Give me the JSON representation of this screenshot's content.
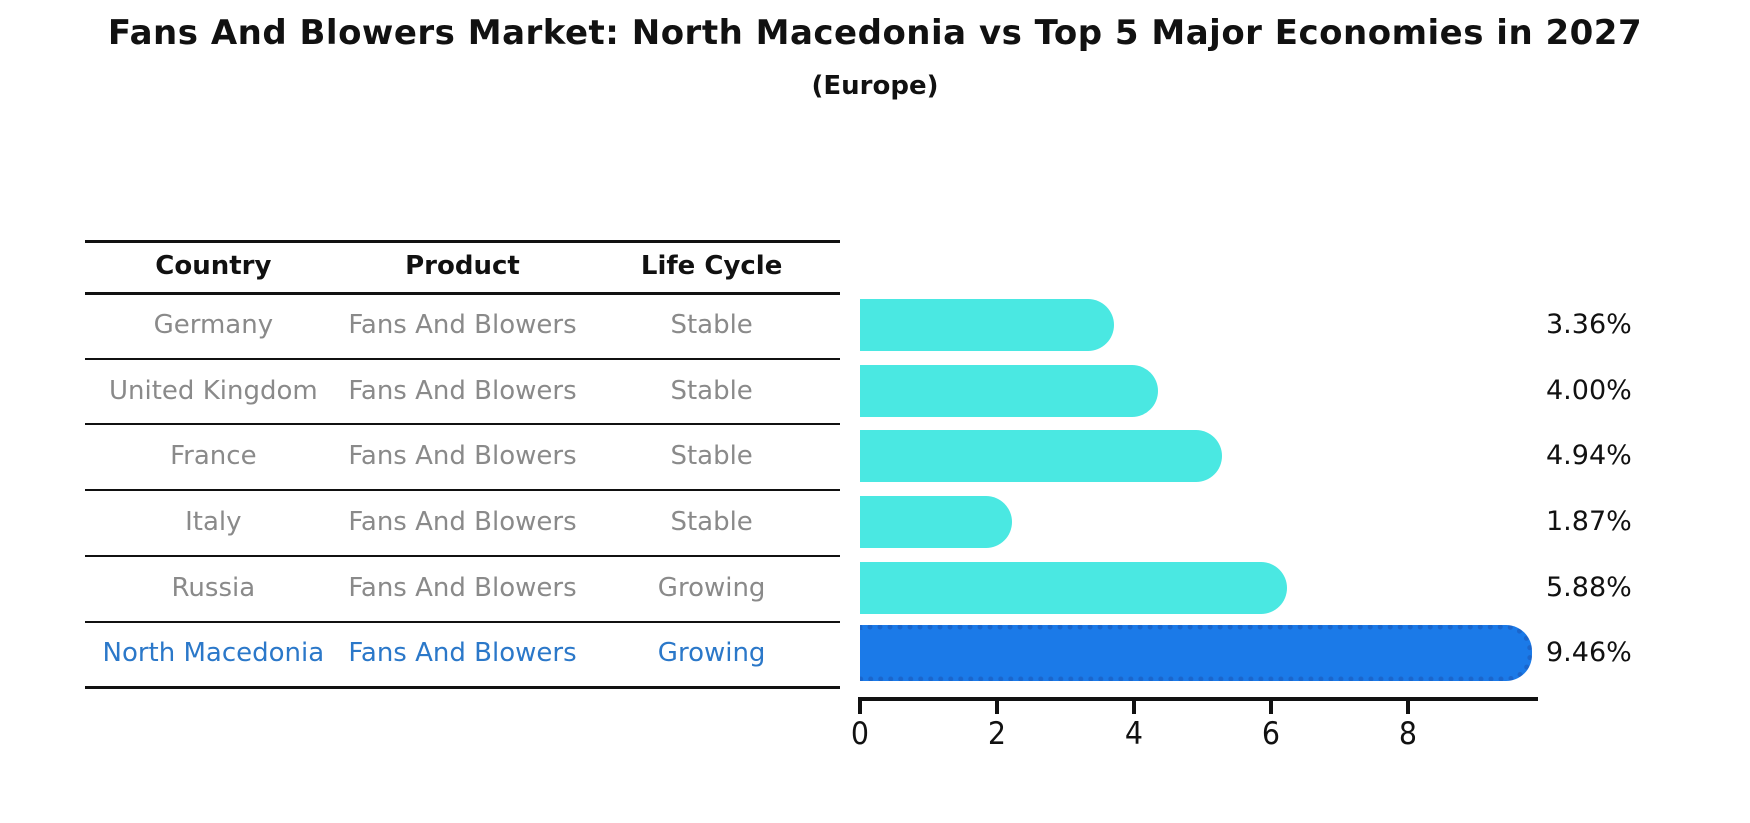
{
  "title": "Fans And Blowers Market: North Macedonia vs Top 5 Major Economies in 2027",
  "subtitle": "(Europe)",
  "table": {
    "headers": [
      "Country",
      "Product",
      "Life Cycle"
    ],
    "rows": [
      {
        "country": "Germany",
        "product": "Fans And Blowers",
        "life_cycle": "Stable",
        "value": 3.36,
        "value_label": "3.36%",
        "highlight": false
      },
      {
        "country": "United Kingdom",
        "product": "Fans And Blowers",
        "life_cycle": "Stable",
        "value": 4.0,
        "value_label": "4.00%",
        "highlight": false
      },
      {
        "country": "France",
        "product": "Fans And Blowers",
        "life_cycle": "Stable",
        "value": 4.94,
        "value_label": "4.94%",
        "highlight": false
      },
      {
        "country": "Italy",
        "product": "Fans And Blowers",
        "life_cycle": "Stable",
        "value": 1.87,
        "value_label": "1.87%",
        "highlight": false
      },
      {
        "country": "Russia",
        "product": "Fans And Blowers",
        "life_cycle": "Growing",
        "value": 5.88,
        "value_label": "5.88%",
        "highlight": false
      },
      {
        "country": "North Macedonia",
        "product": "Fans And Blowers",
        "life_cycle": "Growing",
        "value": 9.46,
        "value_label": "9.46%",
        "highlight": true
      }
    ]
  },
  "axis": {
    "ticks": [
      "0",
      "2",
      "4",
      "6",
      "8"
    ],
    "tick_values": [
      0,
      2,
      4,
      6,
      8
    ]
  },
  "colors": {
    "bar": "#4ae8e2",
    "highlight_bar": "#1b7ae8",
    "highlight_border": "#1b66cc",
    "row_text": "#8a8a8a",
    "highlight_text": "#2b78c9",
    "axis_text": "#111111"
  },
  "chart_data": {
    "type": "bar",
    "orientation": "horizontal",
    "title": "Fans And Blowers Market: North Macedonia vs Top 5 Major Economies in 2027",
    "subtitle": "(Europe)",
    "categories": [
      "Germany",
      "United Kingdom",
      "France",
      "Italy",
      "Russia",
      "North Macedonia"
    ],
    "values": [
      3.36,
      4.0,
      4.94,
      1.87,
      5.88,
      9.46
    ],
    "value_labels": [
      "3.36%",
      "4.00%",
      "4.94%",
      "1.87%",
      "5.88%",
      "9.46%"
    ],
    "life_cycle": [
      "Stable",
      "Stable",
      "Stable",
      "Stable",
      "Growing",
      "Growing"
    ],
    "product": "Fans And Blowers",
    "xlabel": "",
    "ylabel": "",
    "xlim": [
      0,
      9.9
    ],
    "xticks": [
      0,
      2,
      4,
      6,
      8
    ],
    "grid": false,
    "legend": false,
    "highlight_index": 5,
    "unit": "percent"
  }
}
